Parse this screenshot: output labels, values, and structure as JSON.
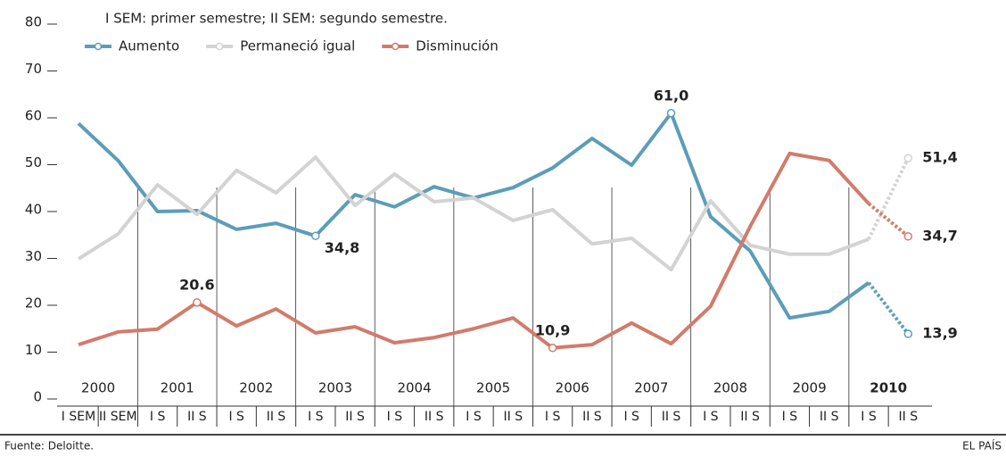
{
  "chart_data": {
    "type": "line",
    "note": "I SEM: primer semestre; II SEM: segundo semestre.",
    "source": "Fuente: Deloitte.",
    "credit": "EL PAÍS",
    "categories": [
      "I SEM",
      "II SEM",
      "I S",
      "II S",
      "I S",
      "II S",
      "I S",
      "II S",
      "I S",
      "II S",
      "I S",
      "II S",
      "I S",
      "II S",
      "I S",
      "II S",
      "I S",
      "II S",
      "I S",
      "II S",
      "I S",
      "II S"
    ],
    "year_labels": [
      "2000",
      "2001",
      "2002",
      "2003",
      "2004",
      "2005",
      "2006",
      "2007",
      "2008",
      "2009",
      "2010"
    ],
    "ylim": [
      0,
      80
    ],
    "yticks": [
      0,
      10,
      20,
      30,
      40,
      50,
      60,
      70,
      80
    ],
    "dotted_from_index": 20,
    "series": [
      {
        "name": "Aumento",
        "color": "#5c9db8",
        "values": [
          58.8,
          50.9,
          40.0,
          40.2,
          36.2,
          37.5,
          34.8,
          43.6,
          41.0,
          45.3,
          42.9,
          45.1,
          49.3,
          55.6,
          49.9,
          61.0,
          38.9,
          31.6,
          17.3,
          18.7,
          24.8,
          13.9
        ],
        "value_labels": [
          null,
          null,
          null,
          null,
          null,
          null,
          "34,8",
          null,
          null,
          null,
          null,
          null,
          null,
          null,
          null,
          "61,0",
          null,
          null,
          null,
          null,
          null,
          "13,9"
        ]
      },
      {
        "name": "Permaneció igual",
        "color": "#d3d3d3",
        "values": [
          29.9,
          35.2,
          45.7,
          39.4,
          48.8,
          44.0,
          51.6,
          41.3,
          48.0,
          42.1,
          42.9,
          38.1,
          40.4,
          33.1,
          34.3,
          27.6,
          42.3,
          32.8,
          30.9,
          30.9,
          34.1,
          51.4
        ],
        "value_labels": [
          null,
          null,
          null,
          null,
          null,
          null,
          null,
          null,
          null,
          null,
          null,
          null,
          null,
          null,
          null,
          null,
          null,
          null,
          null,
          null,
          null,
          "51,4"
        ]
      },
      {
        "name": "Disminución",
        "color": "#d27b6c",
        "values": [
          11.6,
          14.3,
          14.9,
          20.6,
          15.6,
          19.2,
          14.1,
          15.4,
          12.0,
          13.1,
          15.0,
          17.3,
          10.9,
          11.6,
          16.2,
          11.8,
          19.8,
          36.8,
          52.4,
          50.9,
          41.7,
          34.7
        ],
        "value_labels": [
          null,
          null,
          null,
          20.6,
          null,
          null,
          null,
          null,
          null,
          null,
          null,
          null,
          "10,9",
          null,
          null,
          null,
          null,
          null,
          null,
          null,
          null,
          "34,7"
        ]
      }
    ]
  }
}
